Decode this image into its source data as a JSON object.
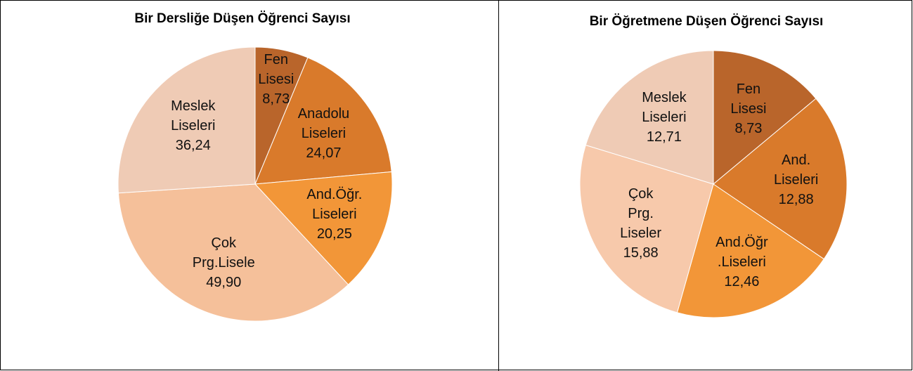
{
  "chart_data": [
    {
      "type": "pie",
      "title": "Bir Dersliğe Düşen Öğrenci Sayısı",
      "categories": [
        "Fen Lisesi",
        "Anadolu Liseleri",
        "And.Öğr. Liseleri",
        "Çok Prg.Lisele",
        "Meslek Liseleri"
      ],
      "values": [
        8.73,
        24.07,
        20.25,
        49.9,
        36.24
      ],
      "value_labels": [
        "8,73",
        "24,07",
        "20,25",
        "49,90",
        "36,24"
      ],
      "colors": [
        "#b9652b",
        "#d97a2b",
        "#f29638",
        "#f5c09a",
        "#efcbb5"
      ]
    },
    {
      "type": "pie",
      "title": "Bir Öğretmene Düşen Öğrenci Sayısı",
      "categories": [
        "Fen Lisesi",
        "And. Liseleri",
        "And.Öğr .Liseleri",
        "Çok Prg. Liseler",
        "Meslek Liseleri"
      ],
      "values": [
        8.73,
        12.88,
        12.46,
        15.88,
        12.71
      ],
      "value_labels": [
        "8,73",
        "12,88",
        "12,46",
        "15,88",
        "12,71"
      ],
      "colors": [
        "#b9652b",
        "#d97a2b",
        "#f29638",
        "#f7c9ab",
        "#efcbb5"
      ]
    }
  ]
}
